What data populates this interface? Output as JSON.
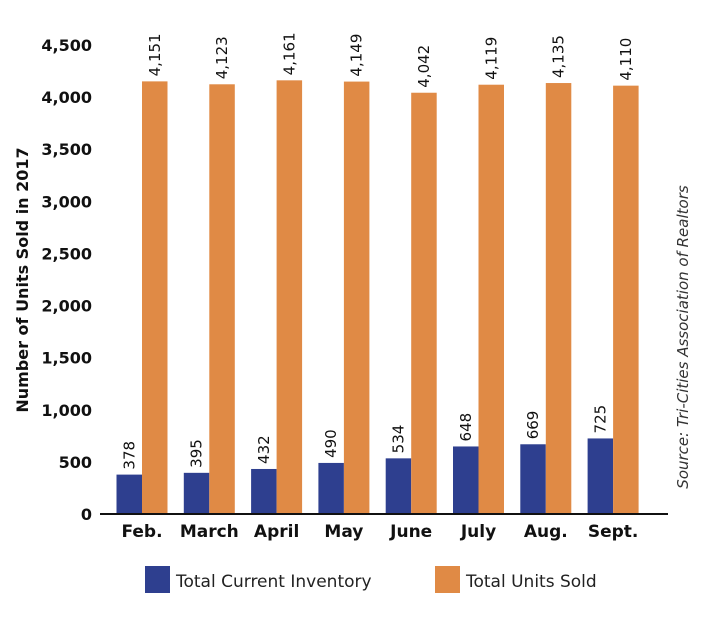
{
  "chart_data": {
    "type": "bar",
    "categories": [
      "Feb.",
      "March",
      "April",
      "May",
      "June",
      "July",
      "Aug.",
      "Sept."
    ],
    "series": [
      {
        "name": "Total Current Inventory",
        "color": "#2e3f8f",
        "values": [
          378,
          395,
          432,
          490,
          534,
          648,
          669,
          725
        ]
      },
      {
        "name": "Total Units Sold",
        "color": "#e08a45",
        "values": [
          4151,
          4123,
          4161,
          4149,
          4042,
          4119,
          4135,
          4110
        ]
      }
    ],
    "data_labels": [
      [
        "378",
        "395",
        "432",
        "490",
        "534",
        "648",
        "669",
        "725"
      ],
      [
        "4,151",
        "4,123",
        "4,161",
        "4,149",
        "4,042",
        "4,119",
        "4,135",
        "4,110"
      ]
    ],
    "yticks": [
      0,
      500,
      1000,
      1500,
      2000,
      2500,
      3000,
      3500,
      4000,
      4500
    ],
    "ytick_labels": [
      "0",
      "500",
      "1,000",
      "1,500",
      "2,000",
      "2,500",
      "3,000",
      "3,500",
      "4,000",
      "4,500"
    ],
    "ylim": [
      0,
      4500
    ],
    "xlabel": "",
    "ylabel": "Number of Units Sold in 2017",
    "source": "Source: Tri-Cities Association of Realtors",
    "grid": false,
    "legend_position": "bottom"
  }
}
